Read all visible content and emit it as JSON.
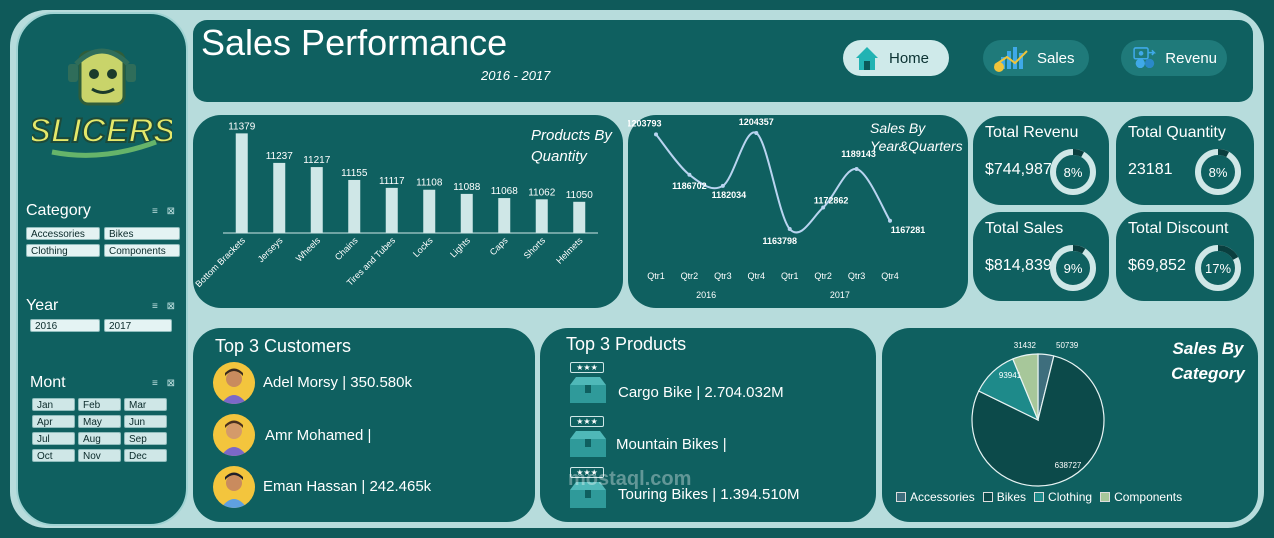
{
  "header": {
    "title": "Sales Performance",
    "subtitle": "2016 - 2017",
    "nav": [
      {
        "label": "Home",
        "icon": "home-icon",
        "active": true
      },
      {
        "label": "Sales",
        "icon": "bar-chart-icon",
        "active": false
      },
      {
        "label": "Revenu",
        "icon": "revenue-icon",
        "active": false
      }
    ]
  },
  "logo": {
    "text": "SLICERS"
  },
  "slicers": {
    "category": {
      "title": "Category",
      "items": [
        "Accessories",
        "Bikes",
        "Clothing",
        "Components"
      ]
    },
    "year": {
      "title": "Year",
      "items": [
        "2016",
        "2017"
      ]
    },
    "month": {
      "title": "Mont",
      "items": [
        "Jan",
        "Feb",
        "Mar",
        "Apr",
        "May",
        "Jun",
        "Jul",
        "Aug",
        "Sep",
        "Oct",
        "Nov",
        "Dec"
      ]
    }
  },
  "kpis": [
    {
      "title": "Total Revenu",
      "value": "$744,987",
      "percent": 8,
      "percent_label": "8%"
    },
    {
      "title": "Total Quantity",
      "value": "23181",
      "percent": 8,
      "percent_label": "8%"
    },
    {
      "title": "Total Sales",
      "value": "$814,839",
      "percent": 9,
      "percent_label": "9%"
    },
    {
      "title": "Total Discount",
      "value": "$69,852",
      "percent": 17,
      "percent_label": "17%"
    }
  ],
  "chart_data": [
    {
      "type": "bar",
      "title": "Products By Quantity",
      "categories": [
        "Bottom Brackets",
        "Jerseys",
        "Wheels",
        "Chains",
        "Tires and Tubes",
        "Locks",
        "Lights",
        "Caps",
        "Shorts",
        "Helmets"
      ],
      "values": [
        11379,
        11237,
        11217,
        11155,
        11117,
        11108,
        11088,
        11068,
        11062,
        11050
      ],
      "labels": [
        "11379",
        "11237",
        "11217",
        "11155",
        "11117",
        "11108",
        "11088",
        "11068",
        "11062",
        "11050"
      ],
      "ylim": [
        10900,
        11400
      ]
    },
    {
      "type": "line",
      "title": "Sales By Year&Quarters",
      "categories": [
        "Qtr1",
        "Qtr2",
        "Qtr3",
        "Qtr4",
        "Qtr1",
        "Qtr2",
        "Qtr3",
        "Qtr4"
      ],
      "groups": [
        "2016",
        "2017"
      ],
      "values": [
        1203793,
        1186702,
        1182034,
        1204357,
        1163798,
        1172862,
        1189143,
        1167281
      ],
      "labels": [
        "1203793",
        "1186702",
        "1182034",
        "1204357",
        "1163798",
        "1172862",
        "1189143",
        "1167281"
      ]
    },
    {
      "type": "pie",
      "title": "Sales By Category",
      "categories": [
        "Accessories",
        "Bikes",
        "Clothing",
        "Components"
      ],
      "values": [
        31432,
        638727,
        93941,
        50739
      ],
      "labels": [
        "31432",
        "638727",
        "93941",
        "50739"
      ],
      "colors": [
        "#3e6e7d",
        "#0c4a4a",
        "#1e8a8a",
        "#a7c79a"
      ]
    }
  ],
  "customers": {
    "title": "Top 3 Customers",
    "items": [
      {
        "text": "Adel Morsy | 350.580k"
      },
      {
        "text": "Amr Mohamed |"
      },
      {
        "text": "Eman Hassan | 242.465k"
      }
    ]
  },
  "products": {
    "title": "Top 3 Products",
    "items": [
      {
        "text": "Cargo Bike | 2.704.032M"
      },
      {
        "text": "Mountain Bikes |"
      },
      {
        "text": "Touring Bikes | 1.394.510M"
      }
    ]
  },
  "watermark": "mostaql.com"
}
